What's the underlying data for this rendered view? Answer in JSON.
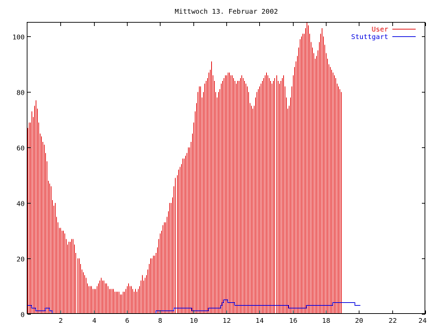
{
  "chart_data": {
    "type": "bar",
    "title": "Mittwoch 13. Februar 2002",
    "xlabel": "",
    "ylabel": "",
    "xlim": [
      0,
      24
    ],
    "ylim": [
      0,
      105
    ],
    "x_ticks": [
      "2",
      "4",
      "6",
      "8",
      "10",
      "12",
      "14",
      "16",
      "18",
      "20",
      "22",
      "24"
    ],
    "y_ticks": [
      "0",
      "20",
      "40",
      "60",
      "80",
      "100"
    ],
    "grid": false,
    "legend_position": "top-right",
    "series": [
      {
        "name": "User",
        "style": "impulses",
        "color": "#e00000",
        "interval_minutes": 5,
        "values": [
          67,
          69,
          69,
          73,
          71,
          75,
          77,
          74,
          69,
          65,
          64,
          62,
          61,
          58,
          55,
          48,
          47,
          46,
          41,
          39,
          40,
          35,
          33,
          31,
          31,
          30,
          30,
          29,
          27,
          25,
          26,
          26,
          27,
          27,
          25,
          22,
          20,
          20,
          18,
          16,
          15,
          14,
          13,
          11,
          10,
          10,
          10,
          9,
          9,
          9,
          10,
          11,
          12,
          13,
          12,
          12,
          11,
          11,
          10,
          9,
          9,
          9,
          9,
          8,
          8,
          8,
          8,
          7,
          7,
          8,
          8,
          9,
          10,
          11,
          10,
          10,
          9,
          8,
          9,
          8,
          9,
          10,
          12,
          14,
          12,
          13,
          14,
          16,
          18,
          20,
          20,
          21,
          21,
          22,
          24,
          27,
          29,
          30,
          32,
          33,
          33,
          35,
          37,
          40,
          40,
          42,
          46,
          49,
          50,
          52,
          53,
          54,
          56,
          56,
          57,
          58,
          60,
          60,
          62,
          65,
          69,
          73,
          76,
          80,
          82,
          82,
          78,
          80,
          83,
          84,
          85,
          87,
          88,
          91,
          86,
          84,
          80,
          78,
          80,
          81,
          83,
          84,
          85,
          86,
          86,
          87,
          87,
          86,
          86,
          85,
          84,
          83,
          84,
          84,
          85,
          86,
          85,
          84,
          83,
          82,
          80,
          76,
          75,
          74,
          75,
          78,
          80,
          81,
          82,
          83,
          84,
          85,
          86,
          87,
          86,
          85,
          84,
          83,
          84,
          85,
          86,
          84,
          83,
          84,
          85,
          86,
          82,
          78,
          74,
          75,
          78,
          82,
          86,
          89,
          91,
          93,
          96,
          99,
          100,
          101,
          101,
          103,
          105,
          104,
          101,
          98,
          96,
          94,
          92,
          93,
          95,
          98,
          101,
          103,
          100,
          97,
          94,
          92,
          90,
          89,
          88,
          87,
          86,
          85,
          83,
          82,
          81,
          80
        ]
      },
      {
        "name": "Stuttgart",
        "style": "steps",
        "color": "#0000e0",
        "interval_minutes": 5,
        "values": [
          3,
          3,
          3,
          2,
          2,
          2,
          1,
          1,
          1,
          1,
          1,
          1,
          1,
          2,
          2,
          2,
          1,
          1,
          0,
          0,
          0,
          0,
          0,
          0,
          0,
          0,
          0,
          0,
          0,
          0,
          0,
          0,
          0,
          0,
          0,
          0,
          0,
          0,
          0,
          0,
          0,
          0,
          0,
          0,
          0,
          0,
          0,
          0,
          0,
          0,
          0,
          0,
          0,
          0,
          0,
          0,
          0,
          0,
          0,
          0,
          0,
          0,
          0,
          0,
          0,
          0,
          0,
          0,
          0,
          0,
          0,
          0,
          0,
          0,
          0,
          0,
          0,
          0,
          0,
          0,
          0,
          0,
          0,
          0,
          0,
          0,
          0,
          0,
          0,
          0,
          0,
          0,
          0,
          1,
          1,
          1,
          1,
          1,
          1,
          1,
          1,
          1,
          1,
          1,
          1,
          1,
          2,
          2,
          2,
          2,
          2,
          2,
          2,
          2,
          2,
          2,
          2,
          2,
          2,
          1,
          1,
          1,
          1,
          1,
          1,
          1,
          1,
          1,
          1,
          1,
          1,
          2,
          2,
          2,
          2,
          2,
          2,
          2,
          2,
          2,
          3,
          4,
          5,
          5,
          5,
          4,
          4,
          4,
          4,
          4,
          3,
          3,
          3,
          3,
          3,
          3,
          3,
          3,
          3,
          3,
          3,
          3,
          3,
          3,
          3,
          3,
          3,
          3,
          3,
          3,
          3,
          3,
          3,
          3,
          3,
          3,
          3,
          3,
          3,
          3,
          3,
          3,
          3,
          3,
          3,
          3,
          3,
          3,
          3,
          2,
          2,
          2,
          2,
          2,
          2,
          2,
          2,
          2,
          2,
          2,
          2,
          2,
          3,
          3,
          3,
          3,
          3,
          3,
          3,
          3,
          3,
          3,
          3,
          3,
          3,
          3,
          3,
          3,
          3,
          3,
          3,
          4,
          4,
          4,
          4,
          4,
          4,
          4,
          4,
          4,
          4,
          4,
          4,
          4,
          4,
          4,
          4,
          3,
          3,
          3,
          3
        ]
      }
    ]
  }
}
